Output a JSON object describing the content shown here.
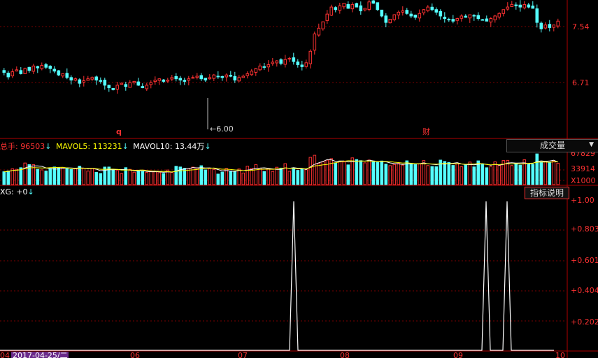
{
  "main": {
    "price_ticks": [
      "7.54",
      "6.71"
    ],
    "low_marker": "6.00",
    "event_markers": [
      "q",
      "财"
    ]
  },
  "volume": {
    "total_label": "总手:",
    "total_value": "96503",
    "mavol5_label": "MAVOL5:",
    "mavol5_value": "113231",
    "mavol10_label": "MAVOL10:",
    "mavol10_value": "13.44万",
    "ticks": [
      "67829",
      "33914",
      "X1000"
    ],
    "selector": "成交量"
  },
  "indicator": {
    "name_label": "XG:",
    "name_value": "+0",
    "ticks": [
      "1.00",
      "0.803",
      "0.601",
      "0.404",
      "0.202"
    ],
    "help_button": "指标说明"
  },
  "date_axis": {
    "start_label": "04",
    "selected_date": "2017-04-25/二",
    "months": [
      "06",
      "07",
      "08",
      "09",
      "10"
    ]
  },
  "colors": {
    "up": "#ff3232",
    "down": "#54ffff",
    "signal": "#ffffff",
    "ma5": "#ffffff",
    "ma10": "#ffff00"
  },
  "chart_data": [
    {
      "type": "candlestick",
      "y_ticks": [
        7.54,
        6.71
      ],
      "ylim": [
        5.8,
        7.95
      ],
      "min_marker": 6.0,
      "close": [
        6.82,
        6.75,
        6.83,
        6.86,
        6.8,
        6.88,
        6.85,
        6.92,
        6.89,
        6.93,
        6.9,
        6.88,
        6.84,
        6.78,
        6.8,
        6.74,
        6.7,
        6.72,
        6.65,
        6.69,
        6.72,
        6.74,
        6.7,
        6.68,
        6.62,
        6.58,
        6.55,
        6.62,
        6.65,
        6.6,
        6.66,
        6.68,
        6.62,
        6.58,
        6.62,
        6.66,
        6.7,
        6.72,
        6.68,
        6.7,
        6.74,
        6.72,
        6.7,
        6.68,
        6.72,
        6.74,
        6.76,
        6.72,
        6.7,
        6.74,
        6.78,
        6.76,
        6.74,
        6.78,
        6.76,
        6.7,
        6.74,
        6.76,
        6.8,
        6.84,
        6.88,
        6.92,
        6.9,
        6.94,
        6.98,
        7.0,
        6.96,
        7.02,
        7.04,
        6.99,
        6.94,
        6.91,
        6.97,
        7.15,
        7.42,
        7.51,
        7.61,
        7.73,
        7.84,
        7.8,
        7.86,
        7.9,
        7.82,
        7.88,
        7.84,
        7.78,
        7.82,
        7.92,
        7.9,
        7.8,
        7.7,
        7.6,
        7.65,
        7.72,
        7.76,
        7.78,
        7.74,
        7.7,
        7.68,
        7.74,
        7.8,
        7.84,
        7.8,
        7.76,
        7.7,
        7.66,
        7.64,
        7.62,
        7.66,
        7.7,
        7.68,
        7.72,
        7.7,
        7.66,
        7.64,
        7.62,
        7.66,
        7.7,
        7.74,
        7.8,
        7.84,
        7.88,
        7.86,
        7.84,
        7.88,
        7.84,
        7.82,
        7.6,
        7.5,
        7.56,
        7.52,
        7.56,
        7.62
      ],
      "volume_ylim": [
        0,
        80000
      ],
      "volume_ticks": [
        67829,
        33914
      ],
      "signal": [
        {
          "start": 0.0,
          "end": 0.0
        }
      ]
    },
    {
      "type": "line",
      "name": "XG",
      "ylim": [
        0,
        1.0
      ],
      "y_ticks": [
        1.0,
        0.803,
        0.601,
        0.404,
        0.202
      ],
      "x_months": [
        "04",
        "06",
        "07",
        "08",
        "09",
        "10"
      ],
      "signals": [
        {
          "position": 0.5185,
          "value": 1.0
        },
        {
          "position": 0.858,
          "value": 1.0
        },
        {
          "position": 0.8951,
          "value": 1.0
        }
      ]
    }
  ]
}
